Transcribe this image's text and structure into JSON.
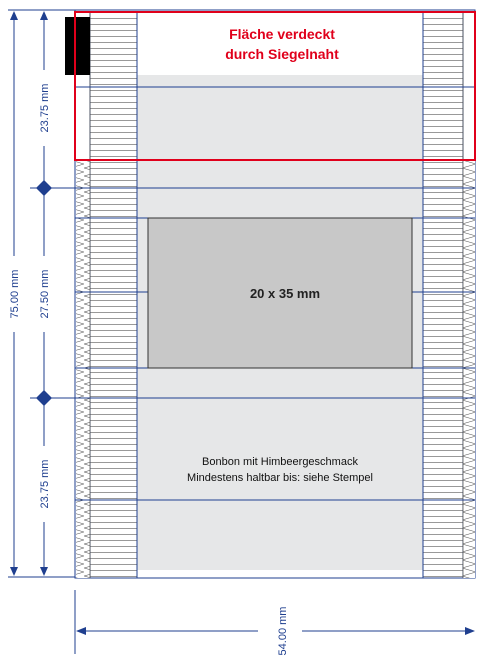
{
  "header_warning": {
    "line1": "Fläche verdeckt",
    "line2": "durch Siegelnaht"
  },
  "label_area": {
    "size": "20 x 35 mm"
  },
  "product_text": {
    "line1": "Bonbon mit Himbeergeschmack",
    "line2": "Mindestens haltbar bis: siehe Stempel"
  },
  "dimensions": {
    "top_segment": "23.75 mm",
    "middle_segment": "27.50 mm",
    "bottom_segment": "23.75 mm",
    "total_height": "75.00 mm",
    "total_width": "54.00 mm"
  },
  "colors": {
    "line": "#1f3f8f",
    "warning": "#e0001b",
    "face_fill": "#e6e7e8",
    "label_fill": "#c8c8c8",
    "marker": "#1f3f8f"
  }
}
